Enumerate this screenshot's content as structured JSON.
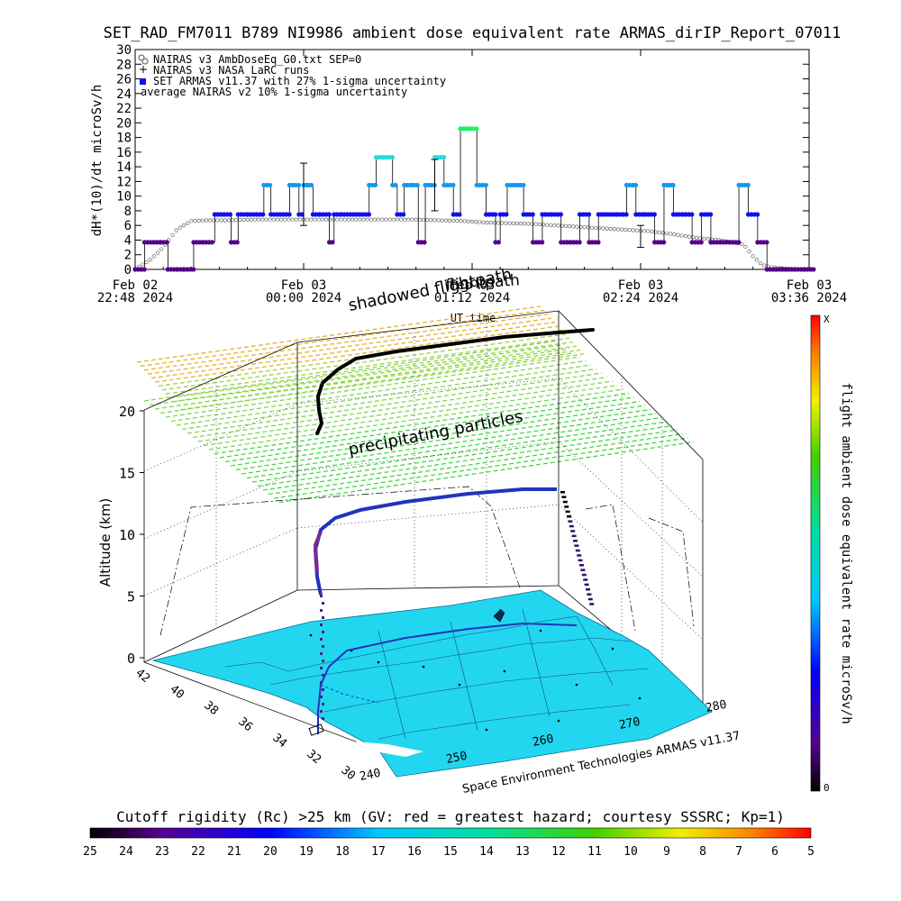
{
  "chart_data": [
    {
      "type": "scatter",
      "title": "SET_RAD_FM7011  B789 NI9986 ambient dose equivalent rate ARMAS_dirIP_Report_07011",
      "ylabel": "dH*(10)/dt microSv/h",
      "xlabel": "UT time",
      "ylim": [
        0,
        30
      ],
      "yticks": [
        "0",
        "2",
        "4",
        "6",
        "8",
        "10",
        "12",
        "14",
        "16",
        "18",
        "20",
        "22",
        "24",
        "26",
        "28",
        "30"
      ],
      "xticks": [
        {
          "t": 0,
          "line1": "Feb 02",
          "line2": "22:48 2024"
        },
        {
          "t": 72,
          "line1": "Feb 03",
          "line2": "00:00 2024"
        },
        {
          "t": 144,
          "line1": "Feb 03",
          "line2": "01:12 2024"
        },
        {
          "t": 216,
          "line1": "Feb 03",
          "line2": "02:24 2024"
        },
        {
          "t": 288,
          "line1": "Feb 03",
          "line2": "03:36 2024"
        }
      ],
      "xlim_minutes": [
        0,
        288
      ],
      "legend": [
        "NAIRAS v3 AmbDoseEq_G0.txt SEP=0",
        "NAIRAS v3 NASA LaRC runs",
        "SET ARMAS v11.37 with 27% 1-sigma uncertainty",
        "average NAIRAS v2 10% 1-sigma uncertainty"
      ],
      "legend_position": "top-left",
      "overlay_label": "flightpath",
      "series": [
        {
          "name": "SET ARMAS v11.37 with 27% 1-sigma uncertainty",
          "x": [
            0,
            4,
            8,
            11,
            14,
            18,
            21,
            25,
            29,
            34,
            38,
            41,
            44,
            48,
            52,
            55,
            58,
            62,
            66,
            70,
            72,
            74,
            76,
            79,
            83,
            85,
            88,
            92,
            96,
            100,
            103,
            106,
            110,
            112,
            115,
            118,
            121,
            124,
            128,
            132,
            136,
            139,
            142,
            146,
            150,
            154,
            156,
            159,
            162,
            166,
            170,
            174,
            178,
            182,
            186,
            190,
            194,
            198,
            202,
            206,
            210,
            214,
            218,
            222,
            226,
            230,
            234,
            238,
            242,
            246,
            250,
            254,
            258,
            262,
            266,
            270,
            274,
            278,
            282,
            286
          ],
          "y": [
            0,
            3.7,
            3.7,
            3.7,
            0,
            0,
            0,
            3.7,
            3.7,
            7.5,
            7.5,
            3.7,
            7.5,
            7.5,
            7.5,
            11.5,
            7.5,
            7.5,
            11.5,
            7.5,
            11.5,
            11.5,
            7.5,
            7.5,
            3.7,
            7.5,
            7.5,
            7.5,
            7.5,
            11.5,
            15.3,
            15.3,
            11.5,
            7.5,
            11.5,
            11.5,
            3.7,
            11.5,
            15.3,
            11.5,
            7.5,
            19.2,
            19.2,
            11.5,
            7.5,
            3.7,
            7.5,
            11.5,
            11.5,
            7.5,
            3.7,
            7.5,
            7.5,
            3.7,
            3.7,
            7.5,
            3.7,
            7.5,
            7.5,
            7.5,
            11.5,
            7.5,
            7.5,
            3.7,
            11.5,
            7.5,
            7.5,
            3.7,
            7.5,
            3.7,
            3.7,
            3.7,
            11.5,
            7.5,
            3.7,
            0,
            0,
            0,
            0,
            0
          ]
        },
        {
          "name": "NAIRAS v3 AmbDoseEq_G0.txt SEP=0",
          "x": [
            0,
            6,
            12,
            18,
            24,
            30,
            40,
            50,
            60,
            70,
            80,
            90,
            100,
            110,
            120,
            130,
            140,
            150,
            160,
            170,
            180,
            190,
            200,
            210,
            220,
            230,
            240,
            250,
            260,
            264,
            268,
            272,
            278,
            284,
            288
          ],
          "y": [
            0.1,
            1.2,
            3.0,
            5.5,
            6.6,
            6.7,
            6.7,
            6.8,
            6.8,
            6.8,
            6.8,
            6.8,
            6.8,
            6.8,
            6.8,
            6.7,
            6.6,
            6.4,
            6.3,
            6.2,
            6.0,
            5.8,
            5.6,
            5.4,
            5.2,
            4.8,
            4.3,
            4.0,
            3.4,
            1.8,
            0.6,
            0.3,
            0.1,
            0.0,
            0.0
          ]
        }
      ],
      "error_bars": [
        {
          "x": 72,
          "y": 10.0,
          "low": 6.0,
          "high": 14.5
        },
        {
          "x": 128,
          "y": 11.0,
          "low": 8.0,
          "high": 15.0
        },
        {
          "x": 216,
          "y": 4.5,
          "low": 3.0,
          "high": 6.0
        }
      ]
    },
    {
      "type": "3d-flight-map",
      "zlabel": "Altitude (km)",
      "zticks": [
        "0",
        "5",
        "10",
        "15",
        "20"
      ],
      "lat_ticks": [
        "42",
        "40",
        "38",
        "36",
        "34",
        "32",
        "30"
      ],
      "lon_ticks": [
        "240",
        "250",
        "260",
        "270",
        "280"
      ],
      "labels": {
        "shadowed": "shadowed flightpath",
        "precipitating": "precipitating particles",
        "credit": "Space Environment Technologies ARMAS v11.37"
      },
      "cruise_altitude_km": 12
    },
    {
      "type": "colorbar",
      "label": "flight ambient dose equivalent rate microSv/h",
      "top_label": "X",
      "bottom_label": "0"
    },
    {
      "type": "colorbar",
      "label": "Cutoff rigidity (Rc) >25 km (GV: red = greatest hazard; courtesy SSSRC; Kp=1)",
      "ticks": [
        "25",
        "24",
        "23",
        "22",
        "21",
        "20",
        "19",
        "18",
        "17",
        "16",
        "15",
        "14",
        "13",
        "12",
        "11",
        "10",
        "9",
        "8",
        "7",
        "6",
        "5"
      ]
    }
  ],
  "colors": {
    "armas_high": "#22ee66",
    "armas_mid_high": "#22dddd",
    "armas_mid": "#1199ee",
    "armas_low": "#1111ee",
    "armas_lowest": "#550088",
    "nairas": "#555555",
    "map_fill": "#22d6f0",
    "layer_top": "#e8b030",
    "layer_mid": "#44d844",
    "flight": "#2233bb"
  }
}
